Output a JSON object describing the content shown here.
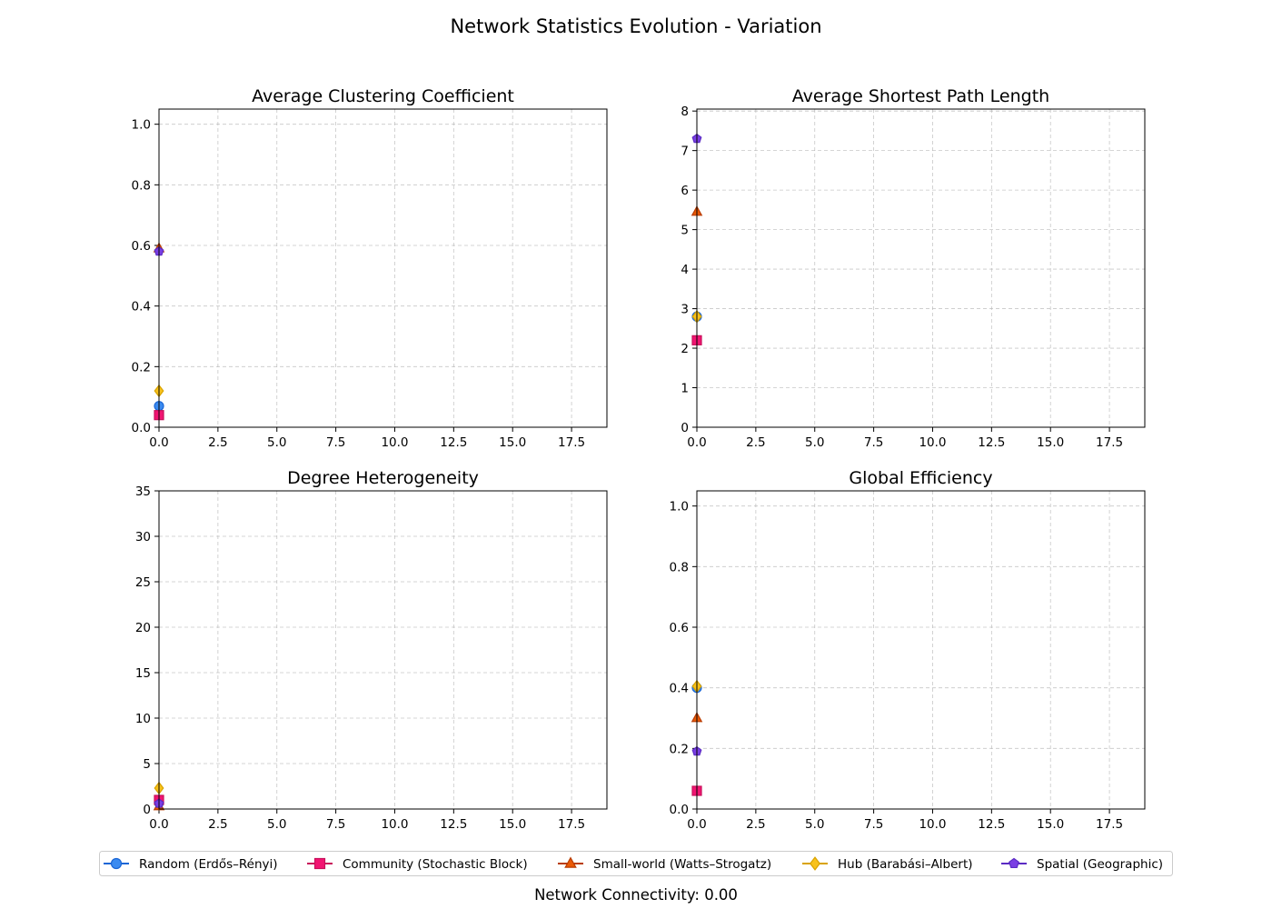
{
  "figure": {
    "title": "Network Statistics Evolution - Variation",
    "footer": "Network Connectivity: 0.00"
  },
  "series_styles": [
    {
      "name": "Random (Erdős–Rényi)",
      "color": "#1a66d6",
      "fill": "#3b8bf0",
      "marker": "circle"
    },
    {
      "name": "Community (Stochastic Block)",
      "color": "#c8105a",
      "fill": "#f21472",
      "marker": "square"
    },
    {
      "name": "Small-world (Watts–Strogatz)",
      "color": "#b93c00",
      "fill": "#ea5a06",
      "marker": "triangle"
    },
    {
      "name": "Hub (Barabási–Albert)",
      "color": "#d9a300",
      "fill": "#f8c21c",
      "marker": "diamond"
    },
    {
      "name": "Spatial (Geographic)",
      "color": "#5b2bc4",
      "fill": "#7b3fe4",
      "marker": "pentagon"
    }
  ],
  "chart_data": [
    {
      "type": "line",
      "title": "Average Clustering Coefficient",
      "xlim": [
        0,
        19
      ],
      "ylim": [
        0,
        1.05
      ],
      "xticks": [
        "0.0",
        "2.5",
        "5.0",
        "7.5",
        "10.0",
        "12.5",
        "15.0",
        "17.5"
      ],
      "yticks": [
        "0.0",
        "0.2",
        "0.4",
        "0.6",
        "0.8",
        "1.0"
      ],
      "grid": true,
      "series": [
        {
          "name": "Random (Erdős–Rényi)",
          "x": [
            0
          ],
          "y": [
            0.07
          ]
        },
        {
          "name": "Community (Stochastic Block)",
          "x": [
            0
          ],
          "y": [
            0.04
          ]
        },
        {
          "name": "Small-world (Watts–Strogatz)",
          "x": [
            0
          ],
          "y": [
            0.59
          ]
        },
        {
          "name": "Hub (Barabási–Albert)",
          "x": [
            0
          ],
          "y": [
            0.12
          ]
        },
        {
          "name": "Spatial (Geographic)",
          "x": [
            0
          ],
          "y": [
            0.58
          ]
        }
      ]
    },
    {
      "type": "line",
      "title": "Average Shortest Path Length",
      "xlim": [
        0,
        19
      ],
      "ylim": [
        0,
        8.05
      ],
      "xticks": [
        "0.0",
        "2.5",
        "5.0",
        "7.5",
        "10.0",
        "12.5",
        "15.0",
        "17.5"
      ],
      "yticks": [
        "0",
        "1",
        "2",
        "3",
        "4",
        "5",
        "6",
        "7",
        "8"
      ],
      "grid": true,
      "series": [
        {
          "name": "Random (Erdős–Rényi)",
          "x": [
            0
          ],
          "y": [
            2.8
          ]
        },
        {
          "name": "Community (Stochastic Block)",
          "x": [
            0
          ],
          "y": [
            2.2
          ]
        },
        {
          "name": "Small-world (Watts–Strogatz)",
          "x": [
            0
          ],
          "y": [
            5.45
          ]
        },
        {
          "name": "Hub (Barabási–Albert)",
          "x": [
            0
          ],
          "y": [
            2.8
          ]
        },
        {
          "name": "Spatial (Geographic)",
          "x": [
            0
          ],
          "y": [
            7.3
          ]
        }
      ]
    },
    {
      "type": "line",
      "title": "Degree Heterogeneity",
      "xlim": [
        0,
        19
      ],
      "ylim": [
        0,
        35
      ],
      "xticks": [
        "0.0",
        "2.5",
        "5.0",
        "7.5",
        "10.0",
        "12.5",
        "15.0",
        "17.5"
      ],
      "yticks": [
        "0",
        "5",
        "10",
        "15",
        "20",
        "25",
        "30",
        "35"
      ],
      "grid": true,
      "series": [
        {
          "name": "Random (Erdős–Rényi)",
          "x": [
            0
          ],
          "y": [
            0.7
          ]
        },
        {
          "name": "Community (Stochastic Block)",
          "x": [
            0
          ],
          "y": [
            1.0
          ]
        },
        {
          "name": "Small-world (Watts–Strogatz)",
          "x": [
            0
          ],
          "y": [
            0.3
          ]
        },
        {
          "name": "Hub (Barabási–Albert)",
          "x": [
            0
          ],
          "y": [
            2.3
          ]
        },
        {
          "name": "Spatial (Geographic)",
          "x": [
            0
          ],
          "y": [
            0.6
          ]
        }
      ]
    },
    {
      "type": "line",
      "title": "Global Efficiency",
      "xlim": [
        0,
        19
      ],
      "ylim": [
        0,
        1.05
      ],
      "xticks": [
        "0.0",
        "2.5",
        "5.0",
        "7.5",
        "10.0",
        "12.5",
        "15.0",
        "17.5"
      ],
      "yticks": [
        "0.0",
        "0.2",
        "0.4",
        "0.6",
        "0.8",
        "1.0"
      ],
      "grid": true,
      "series": [
        {
          "name": "Random (Erdős–Rényi)",
          "x": [
            0
          ],
          "y": [
            0.4
          ]
        },
        {
          "name": "Community (Stochastic Block)",
          "x": [
            0
          ],
          "y": [
            0.06
          ]
        },
        {
          "name": "Small-world (Watts–Strogatz)",
          "x": [
            0
          ],
          "y": [
            0.3
          ]
        },
        {
          "name": "Hub (Barabási–Albert)",
          "x": [
            0
          ],
          "y": [
            0.405
          ]
        },
        {
          "name": "Spatial (Geographic)",
          "x": [
            0
          ],
          "y": [
            0.19
          ]
        }
      ]
    }
  ]
}
